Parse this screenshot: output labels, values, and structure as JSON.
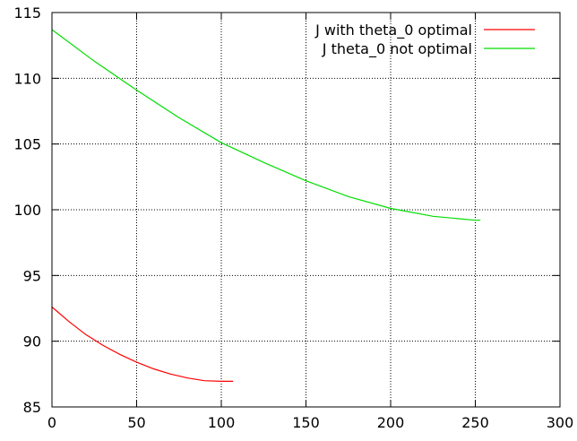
{
  "chart_data": {
    "type": "line",
    "title": "",
    "xlabel": "",
    "ylabel": "",
    "xlim": [
      0,
      300
    ],
    "ylim": [
      85,
      115
    ],
    "x_ticks": [
      "0",
      "50",
      "100",
      "150",
      "200",
      "250",
      "300"
    ],
    "y_ticks": [
      "85",
      "90",
      "95",
      "100",
      "105",
      "110",
      "115"
    ],
    "grid": true,
    "legend_position": "top-right",
    "series": [
      {
        "name": "J with theta_0 optimal",
        "color": "#ff0000",
        "x": [
          0,
          10,
          20,
          30,
          40,
          50,
          60,
          70,
          80,
          90,
          100,
          107
        ],
        "y": [
          92.6,
          91.5,
          90.5,
          89.7,
          89.0,
          88.4,
          87.9,
          87.5,
          87.2,
          87.0,
          86.95,
          86.95
        ]
      },
      {
        "name": "J theta_0 not optimal",
        "color": "#00dd00",
        "x": [
          0,
          25,
          50,
          75,
          100,
          125,
          150,
          175,
          200,
          225,
          250,
          253
        ],
        "y": [
          113.7,
          111.3,
          109.1,
          107.0,
          105.1,
          103.6,
          102.2,
          101.0,
          100.1,
          99.5,
          99.2,
          99.2
        ]
      }
    ]
  }
}
